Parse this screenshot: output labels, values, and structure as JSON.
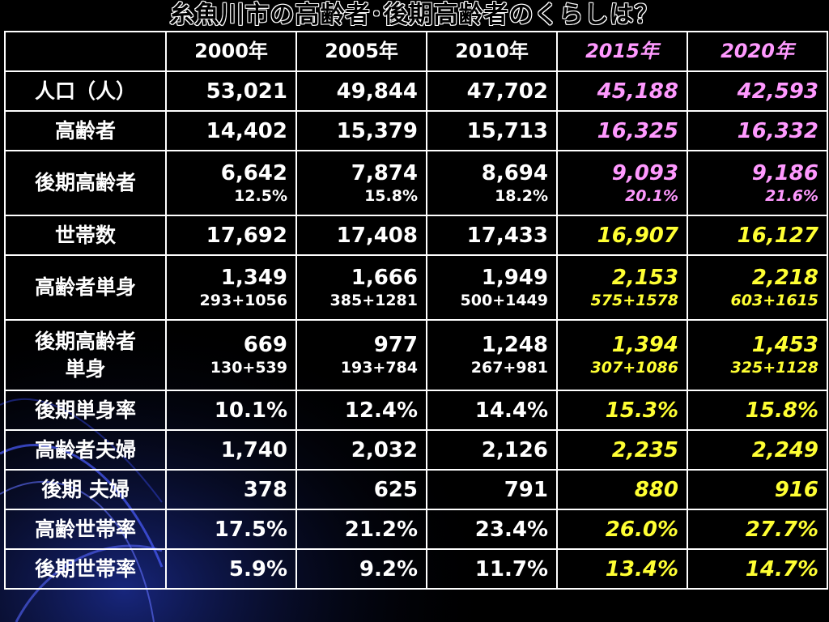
{
  "title": "糸魚川市の高齢者･後期高齢者のくらしは？",
  "columns": [
    "2000年",
    "2005年",
    "2010年",
    "2015年",
    "2020年"
  ],
  "rows": [
    {
      "label": "人口（人）",
      "values": [
        "53,021",
        "49,844",
        "47,702",
        "45,188",
        "42,593"
      ]
    },
    {
      "label": "高齢者",
      "values": [
        "14,402",
        "15,379",
        "15,713",
        "16,325",
        "16,332"
      ]
    },
    {
      "label": "後期高齢者",
      "values": [
        "6,642",
        "7,874",
        "8,694",
        "9,093",
        "9,186"
      ],
      "subs": [
        "12.5%",
        "15.8%",
        "18.2%",
        "20.1%",
        "21.6%"
      ]
    },
    {
      "label": "世帯数",
      "values": [
        "17,692",
        "17,408",
        "17,433",
        "16,907",
        "16,127"
      ]
    },
    {
      "label": "高齢者単身",
      "values": [
        "1,349",
        "1,666",
        "1,949",
        "2,153",
        "2,218"
      ],
      "subs": [
        "293+1056",
        "385+1281",
        "500+1449",
        "575+1578",
        "603+1615"
      ]
    },
    {
      "label_lines": [
        "後期高齢者",
        "単身"
      ],
      "values": [
        "669",
        "977",
        "1,248",
        "1,394",
        "1,453"
      ],
      "subs": [
        "130+539",
        "193+784",
        "267+981",
        "307+1086",
        "325+1128"
      ]
    },
    {
      "label": "後期単身率",
      "values": [
        "10.1%",
        "12.4%",
        "14.4%",
        "15.3%",
        "15.8%"
      ]
    },
    {
      "label": "高齢者夫婦",
      "values": [
        "1,740",
        "2,032",
        "2,126",
        "2,235",
        "2,249"
      ]
    },
    {
      "label": "後期 夫婦",
      "values": [
        "378",
        "625",
        "791",
        "880",
        "916"
      ]
    },
    {
      "label": "高齢世帯率",
      "values": [
        "17.5%",
        "21.2%",
        "23.4%",
        "26.0%",
        "27.7%"
      ]
    },
    {
      "label": "後期世帯率",
      "values": [
        "5.9%",
        "9.2%",
        "11.7%",
        "13.4%",
        "14.7%"
      ]
    }
  ],
  "colors": {
    "background": "#000000",
    "text": "#ffffff",
    "forecast_magenta": "#ff99ff",
    "forecast_yellow": "#ffff33",
    "border": "#ffffff"
  }
}
